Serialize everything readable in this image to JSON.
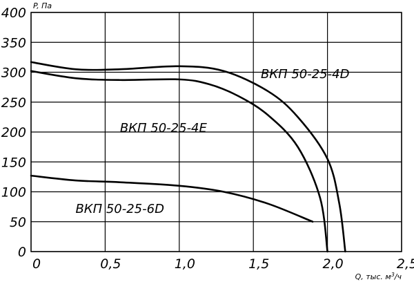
{
  "chart_data": {
    "type": "line",
    "xlabel": "Q, тыс. м³/ч",
    "xlabel_parts": {
      "main": "Q, тыс. м",
      "sup": "3",
      "tail": "/ч"
    },
    "ylabel": "P, Па",
    "xlim": [
      0,
      2.5
    ],
    "ylim": [
      0,
      400
    ],
    "x_tick_labels": [
      "0",
      "0,5",
      "1,0",
      "1,5",
      "2,0",
      "2,5"
    ],
    "y_tick_labels": [
      "0",
      "50",
      "100",
      "150",
      "200",
      "250",
      "300",
      "350",
      "400"
    ],
    "grid": true,
    "series": [
      {
        "name": "ВКП 50-25-4D",
        "points": [
          [
            0.0,
            317
          ],
          [
            0.3,
            305
          ],
          [
            0.6,
            305
          ],
          [
            1.0,
            310
          ],
          [
            1.3,
            302
          ],
          [
            1.6,
            268
          ],
          [
            1.8,
            225
          ],
          [
            2.0,
            155
          ],
          [
            2.08,
            80
          ],
          [
            2.12,
            0
          ]
        ]
      },
      {
        "name": "ВКП 50-25-4E",
        "points": [
          [
            0.0,
            302
          ],
          [
            0.3,
            290
          ],
          [
            0.6,
            287
          ],
          [
            1.0,
            288
          ],
          [
            1.2,
            280
          ],
          [
            1.4,
            260
          ],
          [
            1.6,
            228
          ],
          [
            1.8,
            175
          ],
          [
            1.95,
            90
          ],
          [
            2.0,
            0
          ]
        ]
      },
      {
        "name": "ВКП 50-25-6D",
        "points": [
          [
            0.0,
            127
          ],
          [
            0.3,
            119
          ],
          [
            0.6,
            116
          ],
          [
            1.0,
            110
          ],
          [
            1.3,
            100
          ],
          [
            1.6,
            80
          ],
          [
            1.9,
            50
          ]
        ]
      }
    ]
  }
}
